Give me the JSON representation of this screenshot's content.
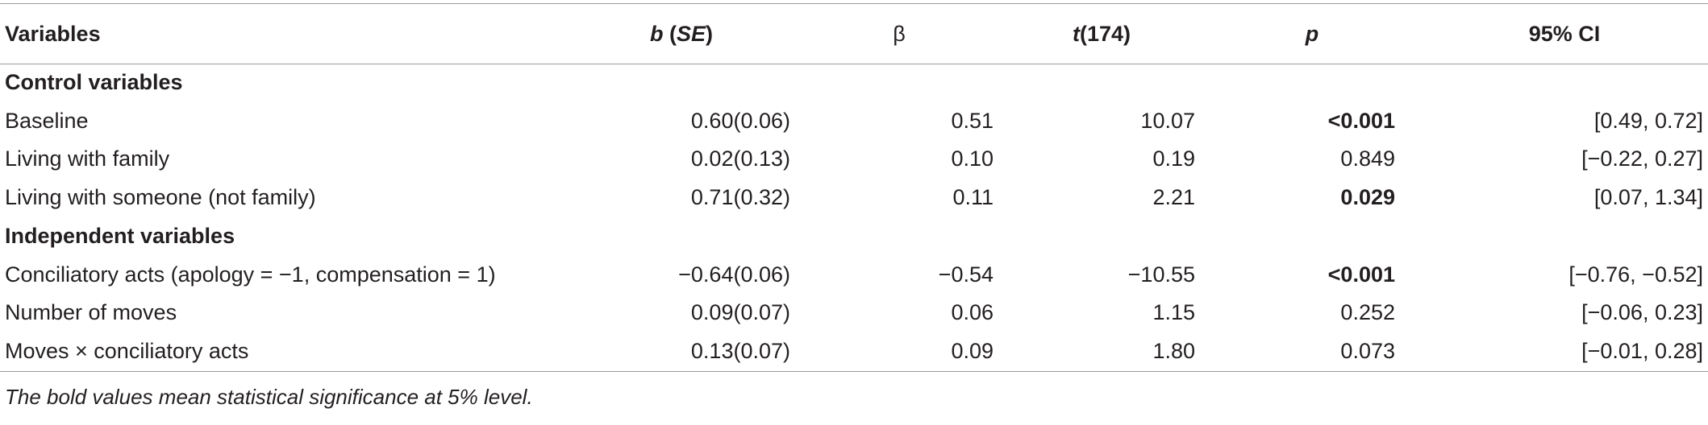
{
  "table": {
    "headers": {
      "variables": "Variables",
      "b_main": "b",
      "b_paren_open": " (",
      "b_se": "SE",
      "b_paren_close": ")",
      "beta": "β",
      "t_main": "t",
      "t_df": "(174)",
      "p": "p",
      "ci": "95% CI"
    },
    "sections": [
      {
        "title": "Control variables",
        "rows": [
          {
            "variable": "Baseline",
            "b": "0.60(0.06)",
            "beta": "0.51",
            "t": "10.07",
            "p": "<0.001",
            "p_bold": true,
            "ci": "[0.49, 0.72]"
          },
          {
            "variable": "Living with family",
            "b": "0.02(0.13)",
            "beta": "0.10",
            "t": "0.19",
            "p": "0.849",
            "p_bold": false,
            "ci": "[−0.22, 0.27]"
          },
          {
            "variable": "Living with someone (not family)",
            "b": "0.71(0.32)",
            "beta": "0.11",
            "t": "2.21",
            "p": "0.029",
            "p_bold": true,
            "ci": "[0.07, 1.34]"
          }
        ]
      },
      {
        "title": "Independent variables",
        "rows": [
          {
            "variable": "Conciliatory acts (apology = −1, compensation = 1)",
            "b": "−0.64(0.06)",
            "beta": "−0.54",
            "t": "−10.55",
            "p": "<0.001",
            "p_bold": true,
            "ci": "[−0.76, −0.52]"
          },
          {
            "variable": "Number of moves",
            "b": "0.09(0.07)",
            "beta": "0.06",
            "t": "1.15",
            "p": "0.252",
            "p_bold": false,
            "ci": "[−0.06, 0.23]"
          },
          {
            "variable": "Moves × conciliatory acts",
            "b": "0.13(0.07)",
            "beta": "0.09",
            "t": "1.80",
            "p": "0.073",
            "p_bold": false,
            "ci": "[−0.01, 0.28]"
          }
        ]
      }
    ]
  },
  "footnote": "The bold values mean statistical significance at 5% level."
}
